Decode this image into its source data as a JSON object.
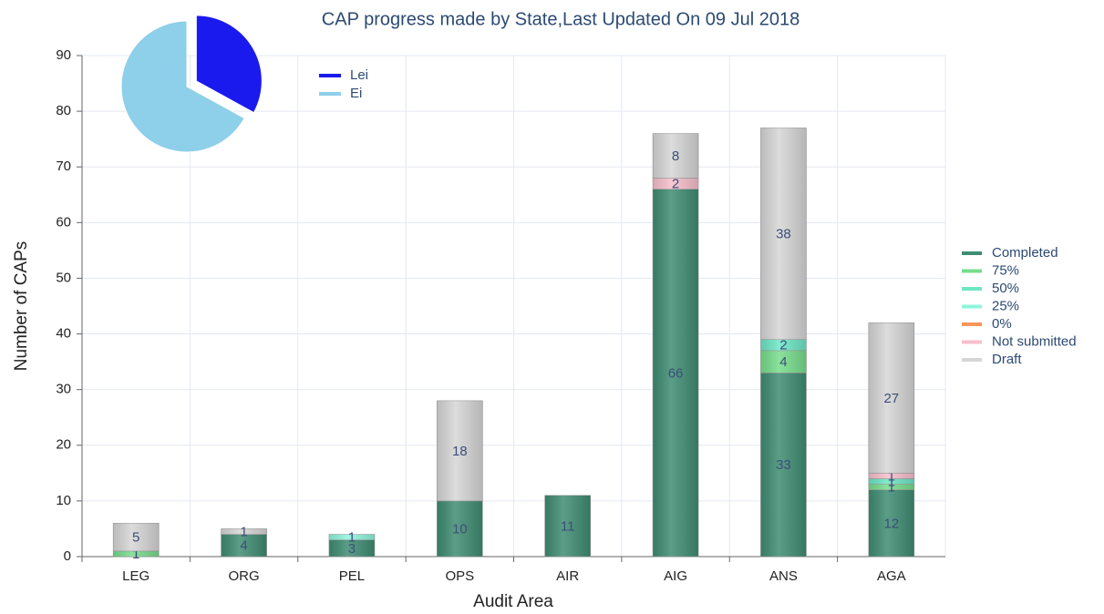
{
  "chart_data": [
    {
      "type": "stacked_bar",
      "title": "CAP progress made by State,Last Updated On 09 Jul 2018",
      "x_label": "Audit Area",
      "y_label": "Number of CAPs",
      "categories": [
        "LEG",
        "ORG",
        "PEL",
        "OPS",
        "AIR",
        "AIG",
        "ANS",
        "AGA"
      ],
      "series": [
        {
          "name": "Completed",
          "color": "#3f8c72",
          "values": [
            0,
            4,
            3,
            10,
            11,
            66,
            33,
            12
          ]
        },
        {
          "name": "75%",
          "color": "#77dd8c",
          "values": [
            1,
            0,
            0,
            0,
            0,
            0,
            4,
            1
          ]
        },
        {
          "name": "50%",
          "color": "#6ee6c4",
          "values": [
            0,
            0,
            0,
            0,
            0,
            0,
            2,
            1
          ]
        },
        {
          "name": "25%",
          "color": "#8ff5dc",
          "values": [
            0,
            0,
            1,
            0,
            0,
            0,
            0,
            0
          ]
        },
        {
          "name": "0%",
          "color": "#f7965a",
          "values": [
            0,
            0,
            0,
            0,
            0,
            0,
            0,
            0
          ]
        },
        {
          "name": "Not submitted",
          "color": "#f7bfcb",
          "values": [
            0,
            0,
            0,
            0,
            0,
            2,
            0,
            1
          ]
        },
        {
          "name": "Draft",
          "color": "#d6d6d6",
          "values": [
            5,
            1,
            0,
            18,
            0,
            8,
            38,
            27
          ]
        }
      ],
      "ylim": [
        0,
        90
      ],
      "yticks": [
        0,
        10,
        20,
        30,
        40,
        50,
        60,
        70,
        80,
        90
      ],
      "grid": true,
      "legend": "right"
    },
    {
      "type": "pie",
      "categories": [
        "Lei",
        "Ei"
      ],
      "values": [
        33,
        67
      ],
      "colors": [
        "#1a1aee",
        "#8ecfe9"
      ],
      "legend": "right"
    }
  ]
}
